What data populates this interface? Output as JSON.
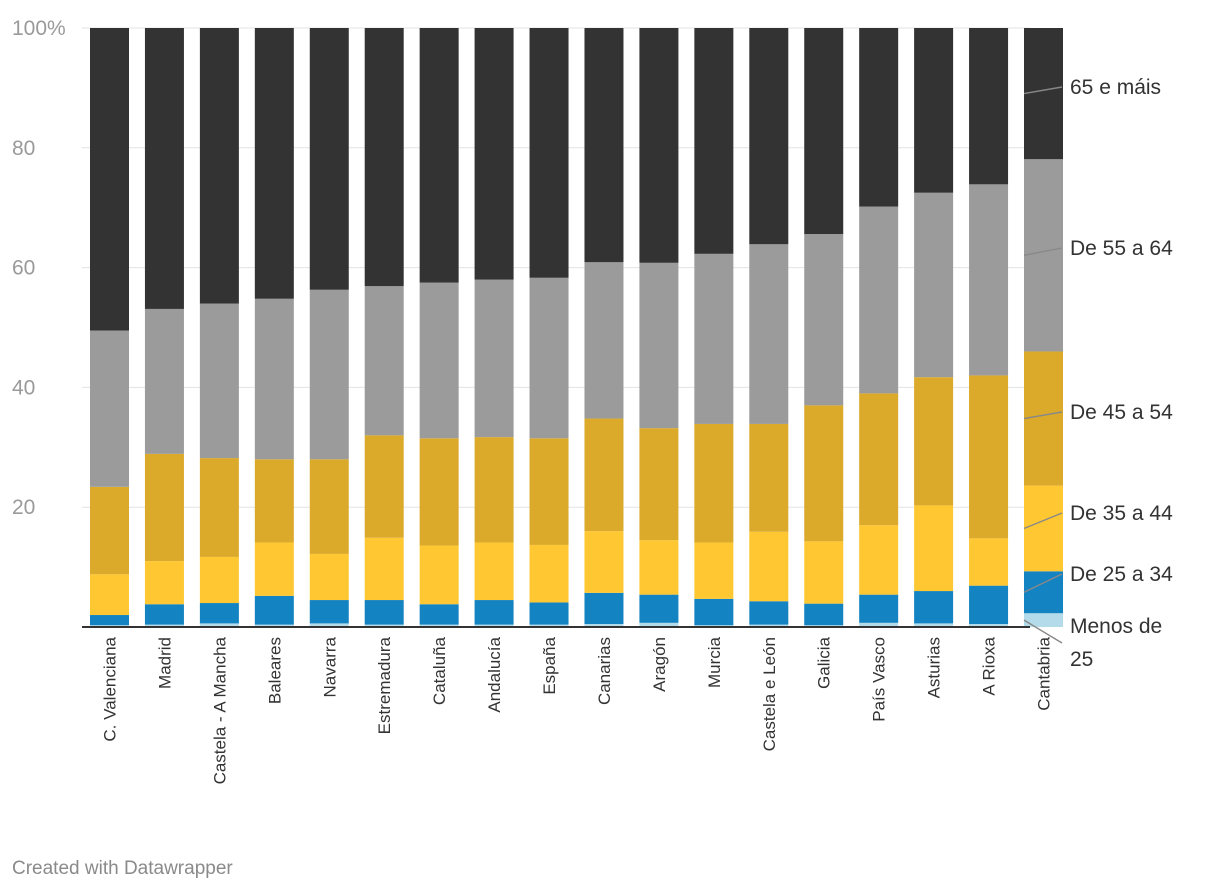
{
  "chart_data": {
    "type": "bar",
    "stacked": true,
    "percent": true,
    "ylim": [
      0,
      100
    ],
    "yticks": [
      {
        "value": 100,
        "label": "100%"
      },
      {
        "value": 80,
        "label": "80"
      },
      {
        "value": 60,
        "label": "60"
      },
      {
        "value": 40,
        "label": "40"
      },
      {
        "value": 20,
        "label": "20"
      }
    ],
    "grid": true,
    "categories": [
      "C. Valenciana",
      "Madrid",
      "Castela - A Mancha",
      "Baleares",
      "Navarra",
      "Estremadura",
      "Cataluña",
      "Andalucía",
      "España",
      "Canarias",
      "Aragón",
      "Murcia",
      "Castela e León",
      "Galicia",
      "País Vasco",
      "Asturias",
      "A Rioxa",
      "Cantabria"
    ],
    "series": [
      {
        "name": "Menos de 25",
        "color": "#b3dbea",
        "values": [
          0.3,
          0.4,
          0.6,
          0.4,
          0.6,
          0.4,
          0.4,
          0.4,
          0.4,
          0.5,
          0.7,
          0.3,
          0.4,
          0.3,
          0.7,
          0.6,
          0.5,
          2.3
        ]
      },
      {
        "name": "De 25 a 34",
        "color": "#1483c1",
        "values": [
          1.7,
          3.4,
          3.4,
          4.8,
          3.9,
          4.1,
          3.4,
          4.1,
          3.7,
          5.2,
          4.7,
          4.4,
          3.9,
          3.6,
          4.7,
          5.4,
          6.4,
          7.0
        ]
      },
      {
        "name": "De 35 a 44",
        "color": "#ffc832",
        "values": [
          6.8,
          7.2,
          7.7,
          8.9,
          7.7,
          10.4,
          9.8,
          9.6,
          9.6,
          10.3,
          9.1,
          9.4,
          11.6,
          10.4,
          11.6,
          14.3,
          7.9,
          14.3
        ]
      },
      {
        "name": "De 45 a 54",
        "color": "#dbaa2a",
        "values": [
          14.6,
          17.9,
          16.5,
          13.9,
          15.8,
          17.1,
          17.9,
          17.6,
          17.8,
          18.8,
          18.7,
          19.8,
          18.0,
          22.7,
          22.0,
          21.4,
          27.2,
          22.4
        ]
      },
      {
        "name": "De 55 a 64",
        "color": "#9b9b9b",
        "values": [
          26.1,
          24.2,
          25.8,
          26.8,
          28.3,
          24.9,
          26.0,
          26.3,
          26.8,
          26.1,
          27.6,
          28.4,
          30.0,
          28.6,
          31.2,
          30.8,
          31.9,
          32.1
        ]
      },
      {
        "name": "65 e máis",
        "color": "#333333",
        "values": [
          50.5,
          46.9,
          46.0,
          45.2,
          43.7,
          43.1,
          42.5,
          42.0,
          41.7,
          39.1,
          39.2,
          37.7,
          36.1,
          34.4,
          29.8,
          27.5,
          26.1,
          21.9
        ]
      }
    ],
    "legend_position": "right",
    "legend_labels": [
      "Menos de 25",
      "De 25 a 34",
      "De 35 a 44",
      "De 45 a 54",
      "De 55 a 64",
      "65 e máis"
    ]
  },
  "footer": {
    "credit": "Created with Datawrapper"
  }
}
